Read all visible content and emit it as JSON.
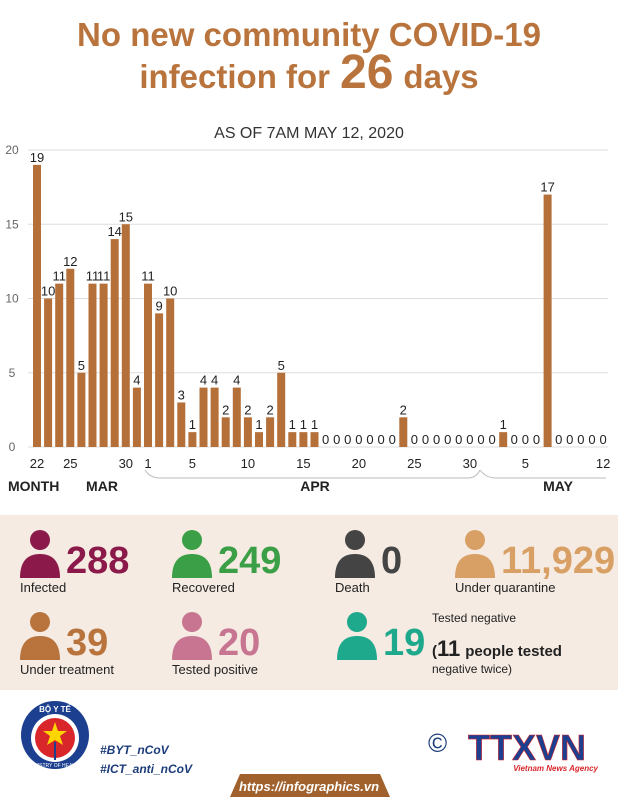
{
  "header": {
    "title_line1": "No new community COVID-19",
    "title_line2": "infection for",
    "title_number": "26",
    "title_end": "days",
    "subtitle": "AS OF 7AM MAY 12, 2020"
  },
  "chart_data": {
    "type": "bar",
    "color": "#b5703a",
    "grid": true,
    "ylim": [
      0,
      20
    ],
    "yticks": [
      0,
      5,
      10,
      15,
      20
    ],
    "x_label": "MONTH",
    "x_groups": [
      "MAR",
      "APR",
      "MAY"
    ],
    "categories": [
      "22",
      null,
      null,
      "25",
      null,
      null,
      null,
      null,
      "30",
      null,
      "1",
      null,
      null,
      null,
      "5",
      null,
      null,
      null,
      null,
      "10",
      null,
      null,
      null,
      null,
      "15",
      null,
      null,
      null,
      null,
      "20",
      null,
      null,
      null,
      null,
      "25",
      null,
      null,
      null,
      null,
      "30",
      null,
      null,
      null,
      null,
      "5",
      null,
      null,
      null,
      null,
      null,
      null,
      "12"
    ],
    "values": [
      19,
      10,
      11,
      12,
      5,
      11,
      11,
      14,
      15,
      4,
      11,
      9,
      10,
      3,
      1,
      4,
      4,
      2,
      4,
      2,
      1,
      2,
      5,
      1,
      1,
      1,
      0,
      0,
      0,
      0,
      0,
      0,
      0,
      2,
      0,
      0,
      0,
      0,
      0,
      0,
      0,
      0,
      1,
      0,
      0,
      0,
      17,
      0,
      0,
      0,
      0,
      0
    ]
  },
  "stats": [
    {
      "value": "288",
      "label": "Infected"
    },
    {
      "value": "249",
      "label": "Recovered"
    },
    {
      "value": "0",
      "label": "Death"
    },
    {
      "value": "11,929",
      "label": "Under quarantine"
    },
    {
      "value": "39",
      "label": "Under treatment"
    },
    {
      "value": "20",
      "label": "Tested positive"
    }
  ],
  "tested_negative": {
    "label": "Tested negative",
    "value": "19",
    "open": "(",
    "twice_count": "11",
    "twice_text": "people tested",
    "twice_end": "negative twice)"
  },
  "footer": {
    "ministry": "BỘ Y TẾ",
    "ministry_en": "MINISTRY OF HEALTH",
    "tag1": "#BYT_nCoV",
    "tag2": "#ICT_anti_nCoV",
    "copyright": "©",
    "agency": "TTXVN",
    "agency_en": "Vietnam News Agency",
    "url": "https://infographics.vn"
  }
}
